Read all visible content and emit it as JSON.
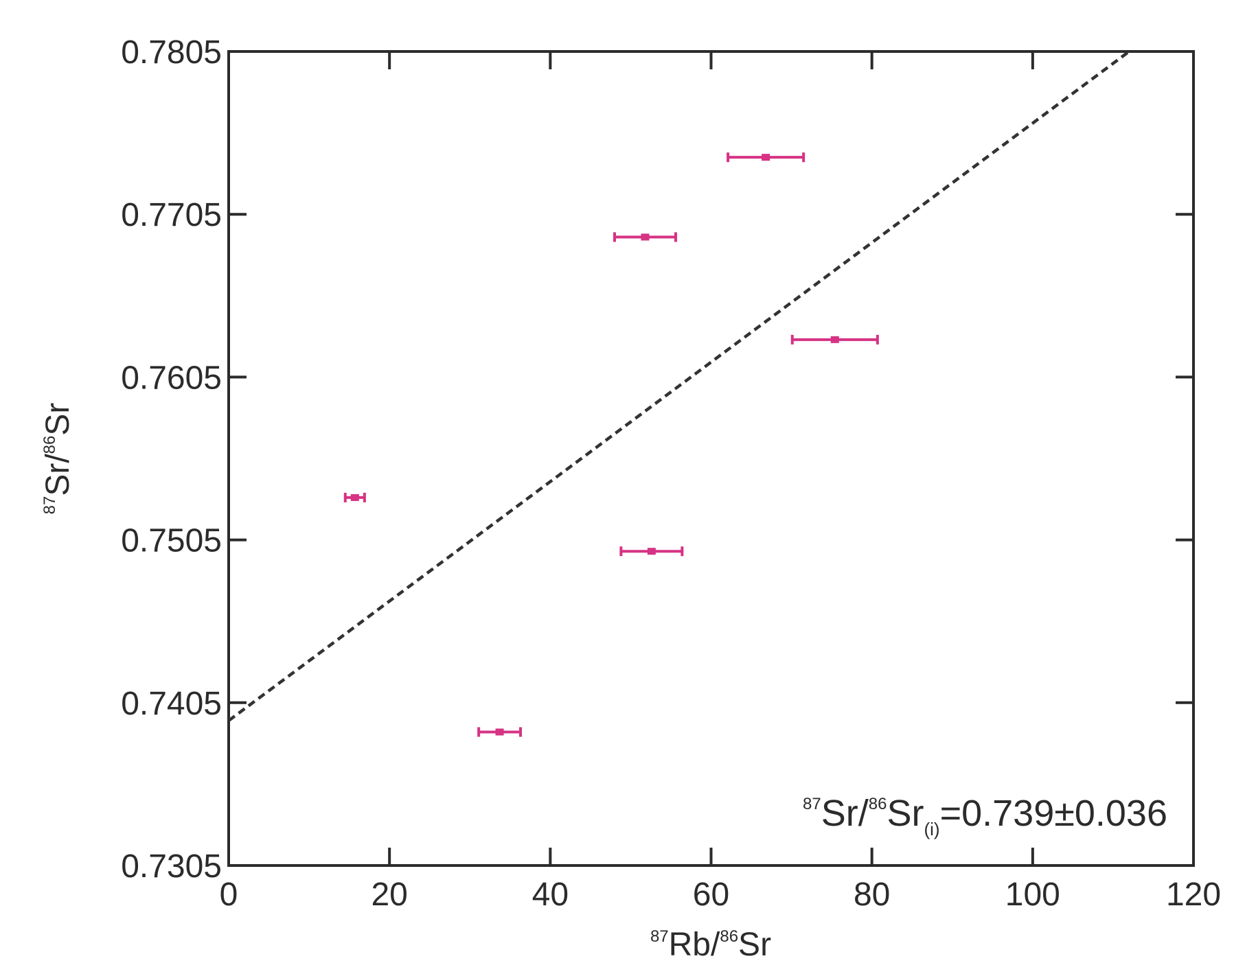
{
  "chart_data": {
    "type": "scatter",
    "xlabel": {
      "sup1": "87",
      "main1": "Rb/",
      "sup2": "86",
      "main2": "Sr"
    },
    "ylabel": {
      "sup1": "87",
      "main1": "Sr/",
      "sup2": "86",
      "main2": "Sr"
    },
    "xlim": [
      0,
      120
    ],
    "ylim": [
      0.7305,
      0.7805
    ],
    "xticks": [
      0,
      20,
      40,
      60,
      80,
      100,
      120
    ],
    "xtick_labels": [
      "0",
      "20",
      "40",
      "60",
      "80",
      "100",
      "120"
    ],
    "yticks": [
      0.7305,
      0.7405,
      0.7505,
      0.7605,
      0.7705,
      0.7805
    ],
    "ytick_labels": [
      "0.7305",
      "0.7405",
      "0.7505",
      "0.7605",
      "0.7705",
      "0.7805"
    ],
    "grid": false,
    "marker_color": "#d63384",
    "line_color": "#333333",
    "points": [
      {
        "x": 15.7,
        "y": 0.7531,
        "xerr": 1.2
      },
      {
        "x": 33.7,
        "y": 0.7387,
        "xerr": 2.6
      },
      {
        "x": 52.6,
        "y": 0.7498,
        "xerr": 3.8
      },
      {
        "x": 51.8,
        "y": 0.7691,
        "xerr": 3.8
      },
      {
        "x": 66.8,
        "y": 0.774,
        "xerr": 4.7
      },
      {
        "x": 75.4,
        "y": 0.7628,
        "xerr": 5.3
      }
    ],
    "isochron": {
      "style": "dashed",
      "x": [
        0,
        112
      ],
      "y": [
        0.7394,
        0.7805
      ]
    },
    "annotation": {
      "sup1": "87",
      "main1": "Sr/",
      "sup2": "86",
      "main2": "Sr",
      "sub": "(i)",
      "main3": "=0.739±0.036"
    }
  }
}
